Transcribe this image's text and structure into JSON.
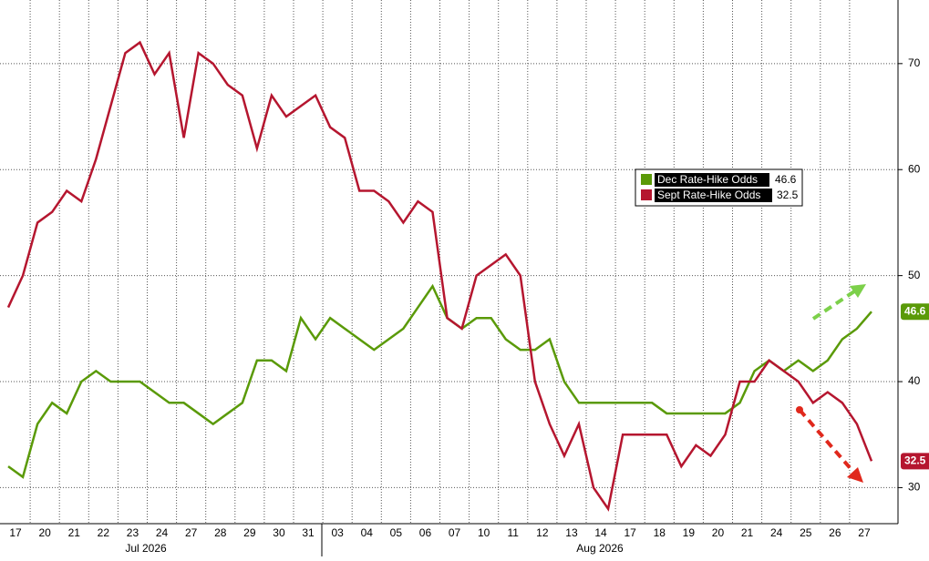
{
  "chart_data": {
    "type": "line",
    "categories": [
      "17",
      null,
      "20",
      null,
      "21",
      null,
      "22",
      null,
      "23",
      null,
      "24",
      null,
      "27",
      null,
      "28",
      null,
      "29",
      null,
      "30",
      null,
      "31",
      null,
      "03",
      null,
      "04",
      null,
      "05",
      null,
      "06",
      null,
      "07",
      null,
      "10",
      null,
      "11",
      null,
      "12",
      null,
      "13",
      null,
      "14",
      null,
      "17",
      null,
      "18",
      null,
      "19",
      null,
      "20",
      null,
      "21",
      null,
      "24",
      null,
      "25",
      null,
      "26",
      null,
      "27",
      null
    ],
    "month_labels": [
      "Jul 2026",
      "Aug 2026"
    ],
    "series": [
      {
        "name": "Dec Rate-Hike Odds",
        "color": "#5a9a08",
        "values": [
          32,
          31,
          36,
          38,
          37,
          40,
          41,
          40,
          40,
          40,
          39,
          38,
          38,
          37,
          36,
          37,
          38,
          42,
          42,
          41,
          46,
          44,
          46,
          45,
          44,
          43,
          44,
          45,
          47,
          49,
          46,
          45,
          46,
          46,
          44,
          43,
          43,
          44,
          40,
          38,
          38,
          38,
          38,
          38,
          38,
          37,
          37,
          37,
          37,
          37,
          38,
          41,
          42,
          41,
          42,
          41,
          42,
          44,
          45,
          46.6
        ]
      },
      {
        "name": "Sept Rate-Hike Odds",
        "color": "#b5162f",
        "values": [
          47,
          50,
          55,
          56,
          58,
          57,
          61,
          66,
          71,
          72,
          69,
          71,
          63,
          71,
          70,
          68,
          67,
          62,
          67,
          65,
          66,
          67,
          64,
          63,
          58,
          58,
          57,
          55,
          57,
          56,
          46,
          45,
          50,
          51,
          52,
          50,
          40,
          36,
          33,
          36,
          30,
          28,
          35,
          35,
          35,
          35,
          32,
          34,
          33,
          35,
          40,
          40,
          42,
          41,
          40,
          38,
          39,
          38,
          36,
          32.5
        ]
      }
    ],
    "ylim": [
      26.6,
      76
    ],
    "yticks": [
      30,
      40,
      50,
      60,
      70
    ],
    "grid": true
  }
}
